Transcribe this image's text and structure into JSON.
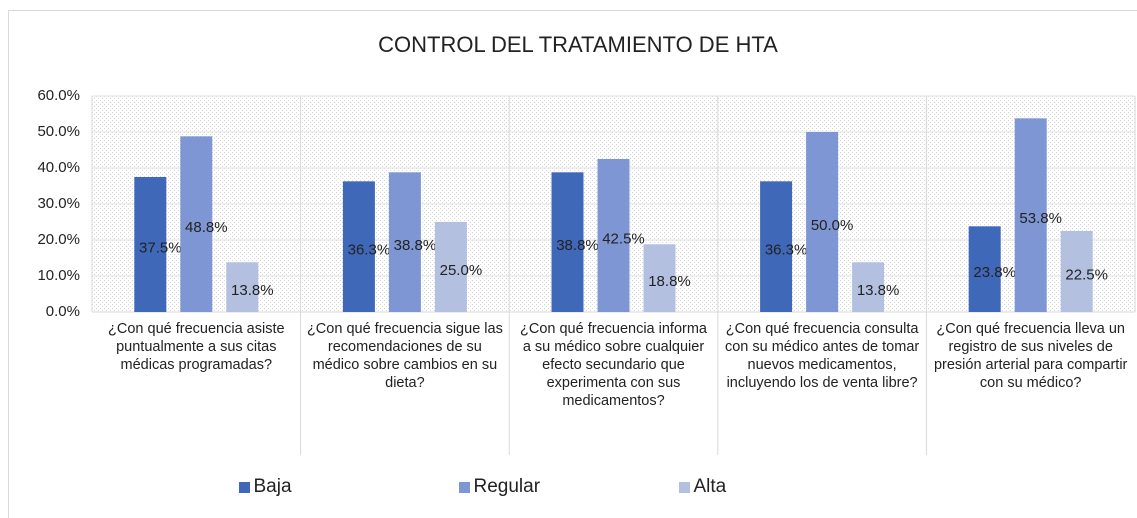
{
  "chart_data": {
    "type": "bar",
    "title": "CONTROL DEL TRATAMIENTO DE HTA",
    "categories": [
      "¿Con qué frecuencia asiste puntualmente a sus citas médicas programadas?",
      "¿Con qué frecuencia sigue las recomendaciones de su médico sobre cambios en su dieta?",
      "¿Con qué frecuencia informa a su médico sobre cualquier efecto secundario que experimenta con sus medicamentos?",
      "¿Con qué frecuencia consulta con su médico antes de tomar nuevos medicamentos, incluyendo los de venta libre?",
      "¿Con qué frecuencia lleva un registro de sus niveles de presión arterial para compartir con su médico?"
    ],
    "series": [
      {
        "name": "Baja",
        "color": "#4068b9",
        "values": [
          37.5,
          36.3,
          38.8,
          36.3,
          23.8
        ],
        "value_labels": [
          "37.5%",
          "36.3%",
          "38.8%",
          "36.3%",
          "23.8%"
        ]
      },
      {
        "name": "Regular",
        "color": "#7e96d3",
        "values": [
          48.8,
          38.8,
          42.5,
          50.0,
          53.8
        ],
        "value_labels": [
          "48.8%",
          "38.8%",
          "42.5%",
          "50.0%",
          "53.8%"
        ]
      },
      {
        "name": "Alta",
        "color": "#b3c0e0",
        "values": [
          13.8,
          25.0,
          18.8,
          13.8,
          22.5
        ],
        "value_labels": [
          "13.8%",
          "25.0%",
          "18.8%",
          "13.8%",
          "22.5%"
        ]
      }
    ],
    "ylim": [
      0,
      60
    ],
    "yticks": [
      {
        "value": 0,
        "label": "0.0%"
      },
      {
        "value": 10,
        "label": "10.0%"
      },
      {
        "value": 20,
        "label": "20.0%"
      },
      {
        "value": 30,
        "label": "30.0%"
      },
      {
        "value": 40,
        "label": "40.0%"
      },
      {
        "value": 50,
        "label": "50.0%"
      },
      {
        "value": 60,
        "label": "60.0%"
      }
    ],
    "grid": true
  }
}
